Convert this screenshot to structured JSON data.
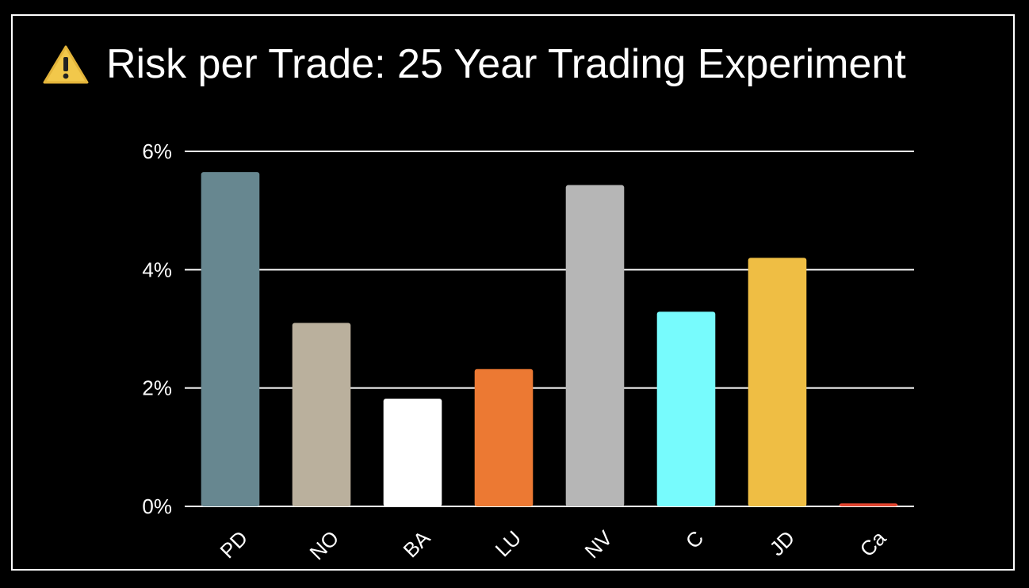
{
  "title": "Risk per Trade: 25 Year Trading Experiment",
  "title_icon": "warning-icon",
  "colors": {
    "background": "#000000",
    "grid": "#ffffff",
    "text": "#ffffff"
  },
  "chart_data": {
    "type": "bar",
    "title": "Risk per Trade: 25 Year Trading Experiment",
    "xlabel": "",
    "ylabel": "",
    "ylim": [
      0,
      6
    ],
    "yticks": [
      0,
      2,
      4,
      6
    ],
    "ytick_labels": [
      "0%",
      "2%",
      "4%",
      "6%"
    ],
    "grid": true,
    "legend": "none",
    "categories": [
      "PD",
      "NO",
      "BA",
      "LU",
      "NV",
      "C",
      "JD",
      "Ca"
    ],
    "values": [
      5.65,
      3.1,
      1.82,
      2.32,
      5.43,
      3.29,
      4.2,
      0.05
    ],
    "bar_colors": [
      "#678790",
      "#bab09d",
      "#ffffff",
      "#ec7933",
      "#b6b6b6",
      "#77fbfd",
      "#efbe44",
      "#e2442f"
    ]
  }
}
